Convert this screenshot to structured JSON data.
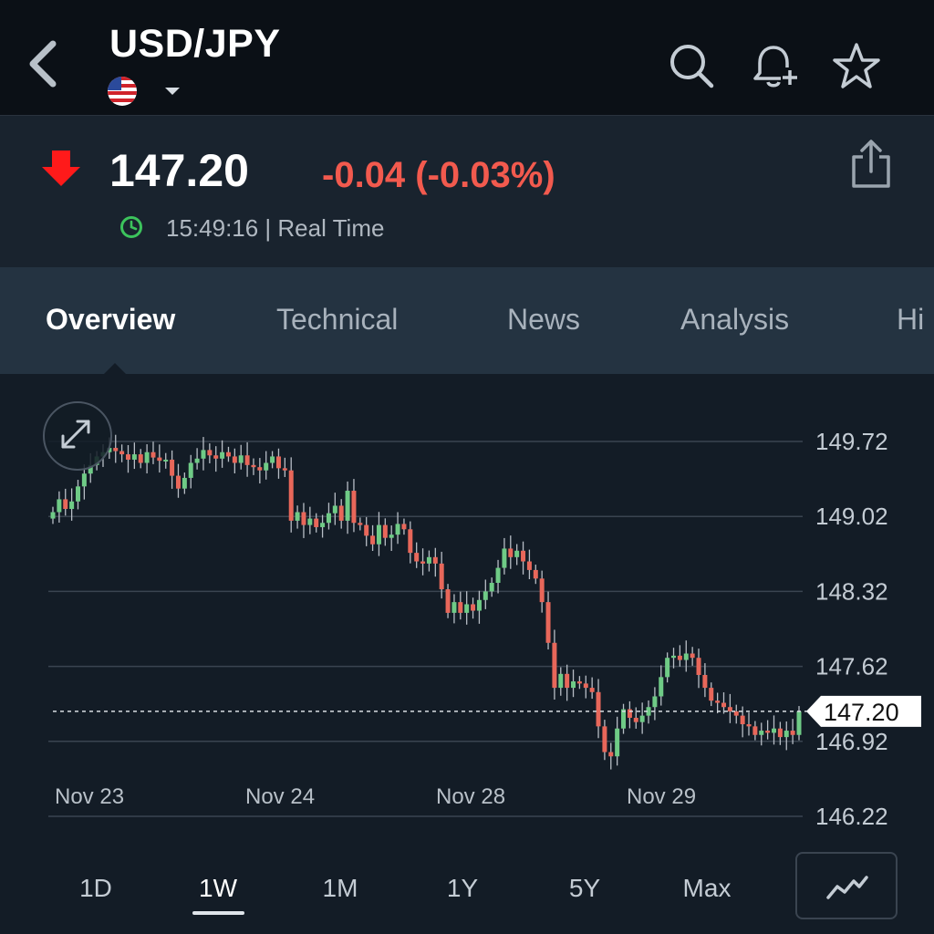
{
  "header": {
    "back_icon": "chevron-left-icon",
    "title": "USD/JPY",
    "flag_icon": "us-flag-icon",
    "dropdown_icon": "caret-down-icon",
    "actions": [
      "search-icon",
      "bell-plus-icon",
      "star-icon"
    ]
  },
  "quote": {
    "direction_icon": "arrow-down-icon",
    "price": "147.20",
    "change": "-0.04 (-0.03%)",
    "time": "15:49:16 | Real Time",
    "clock_icon": "clock-icon",
    "share_icon": "share-icon",
    "colors": {
      "down": "#f25a4e",
      "arrow": "#ff1a1a",
      "clock": "#3cc35c"
    }
  },
  "tabs": [
    {
      "label": "Overview",
      "active": true
    },
    {
      "label": "Technical",
      "active": false
    },
    {
      "label": "News",
      "active": false
    },
    {
      "label": "Analysis",
      "active": false
    },
    {
      "label": "Hi",
      "active": false
    }
  ],
  "chart_data": {
    "type": "candlestick",
    "y_ticks": [
      "149.72",
      "149.02",
      "148.32",
      "147.62",
      "146.92",
      "146.22"
    ],
    "ylim": [
      146.22,
      149.72
    ],
    "x_labels": [
      "Nov 23",
      "Nov 24",
      "Nov 28",
      "Nov 29"
    ],
    "last_price": 147.2,
    "last_price_label": "147.20",
    "colors": {
      "up": "#6fcb86",
      "down": "#e8675a",
      "wick": "#b8bec6",
      "grid": "#3a4450"
    },
    "series": [
      {
        "name": "",
        "values": [
          149.06,
          149.18,
          149.09,
          149.16,
          149.3,
          149.42,
          149.5,
          149.58,
          149.62,
          149.66,
          149.63,
          149.6,
          149.55,
          149.6,
          149.52,
          149.62,
          149.57,
          149.54,
          149.55,
          149.4,
          149.28,
          149.38,
          149.52,
          149.56,
          149.64,
          149.59,
          149.56,
          149.62,
          149.58,
          149.52,
          149.59,
          149.5,
          149.48,
          149.45,
          149.52,
          149.58,
          149.47,
          149.45,
          148.98,
          149.06,
          148.94,
          149.0,
          148.92,
          148.96,
          149.05,
          149.12,
          148.98,
          149.26,
          148.96,
          148.94,
          148.84,
          148.76,
          148.94,
          148.82,
          148.85,
          148.95,
          148.9,
          148.68,
          148.6,
          148.58,
          148.64,
          148.58,
          148.34,
          148.12,
          148.22,
          148.12,
          148.2,
          148.14,
          148.24,
          148.32,
          148.4,
          148.54,
          148.72,
          148.64,
          148.7,
          148.6,
          148.52,
          148.44,
          148.22,
          147.84,
          147.42,
          147.55,
          147.42,
          147.48,
          147.46,
          147.42,
          147.38,
          147.06,
          146.82,
          146.78,
          147.04,
          147.22,
          147.14,
          147.1,
          147.16,
          147.24,
          147.34,
          147.52,
          147.7,
          147.72,
          147.68,
          147.74,
          147.7,
          147.54,
          147.42,
          147.3,
          147.28,
          147.24,
          147.2,
          147.16,
          147.08,
          147.06,
          146.98,
          147.02,
          147.0,
          147.04,
          146.96,
          147.02,
          146.98,
          147.2
        ]
      }
    ]
  },
  "chart": {
    "expand_icon": "expand-icon"
  },
  "ranges": [
    {
      "label": "1D",
      "active": false
    },
    {
      "label": "1W",
      "active": true
    },
    {
      "label": "1M",
      "active": false
    },
    {
      "label": "1Y",
      "active": false
    },
    {
      "label": "5Y",
      "active": false
    },
    {
      "label": "Max",
      "active": false
    }
  ],
  "chart_type_icon": "line-chart-icon"
}
